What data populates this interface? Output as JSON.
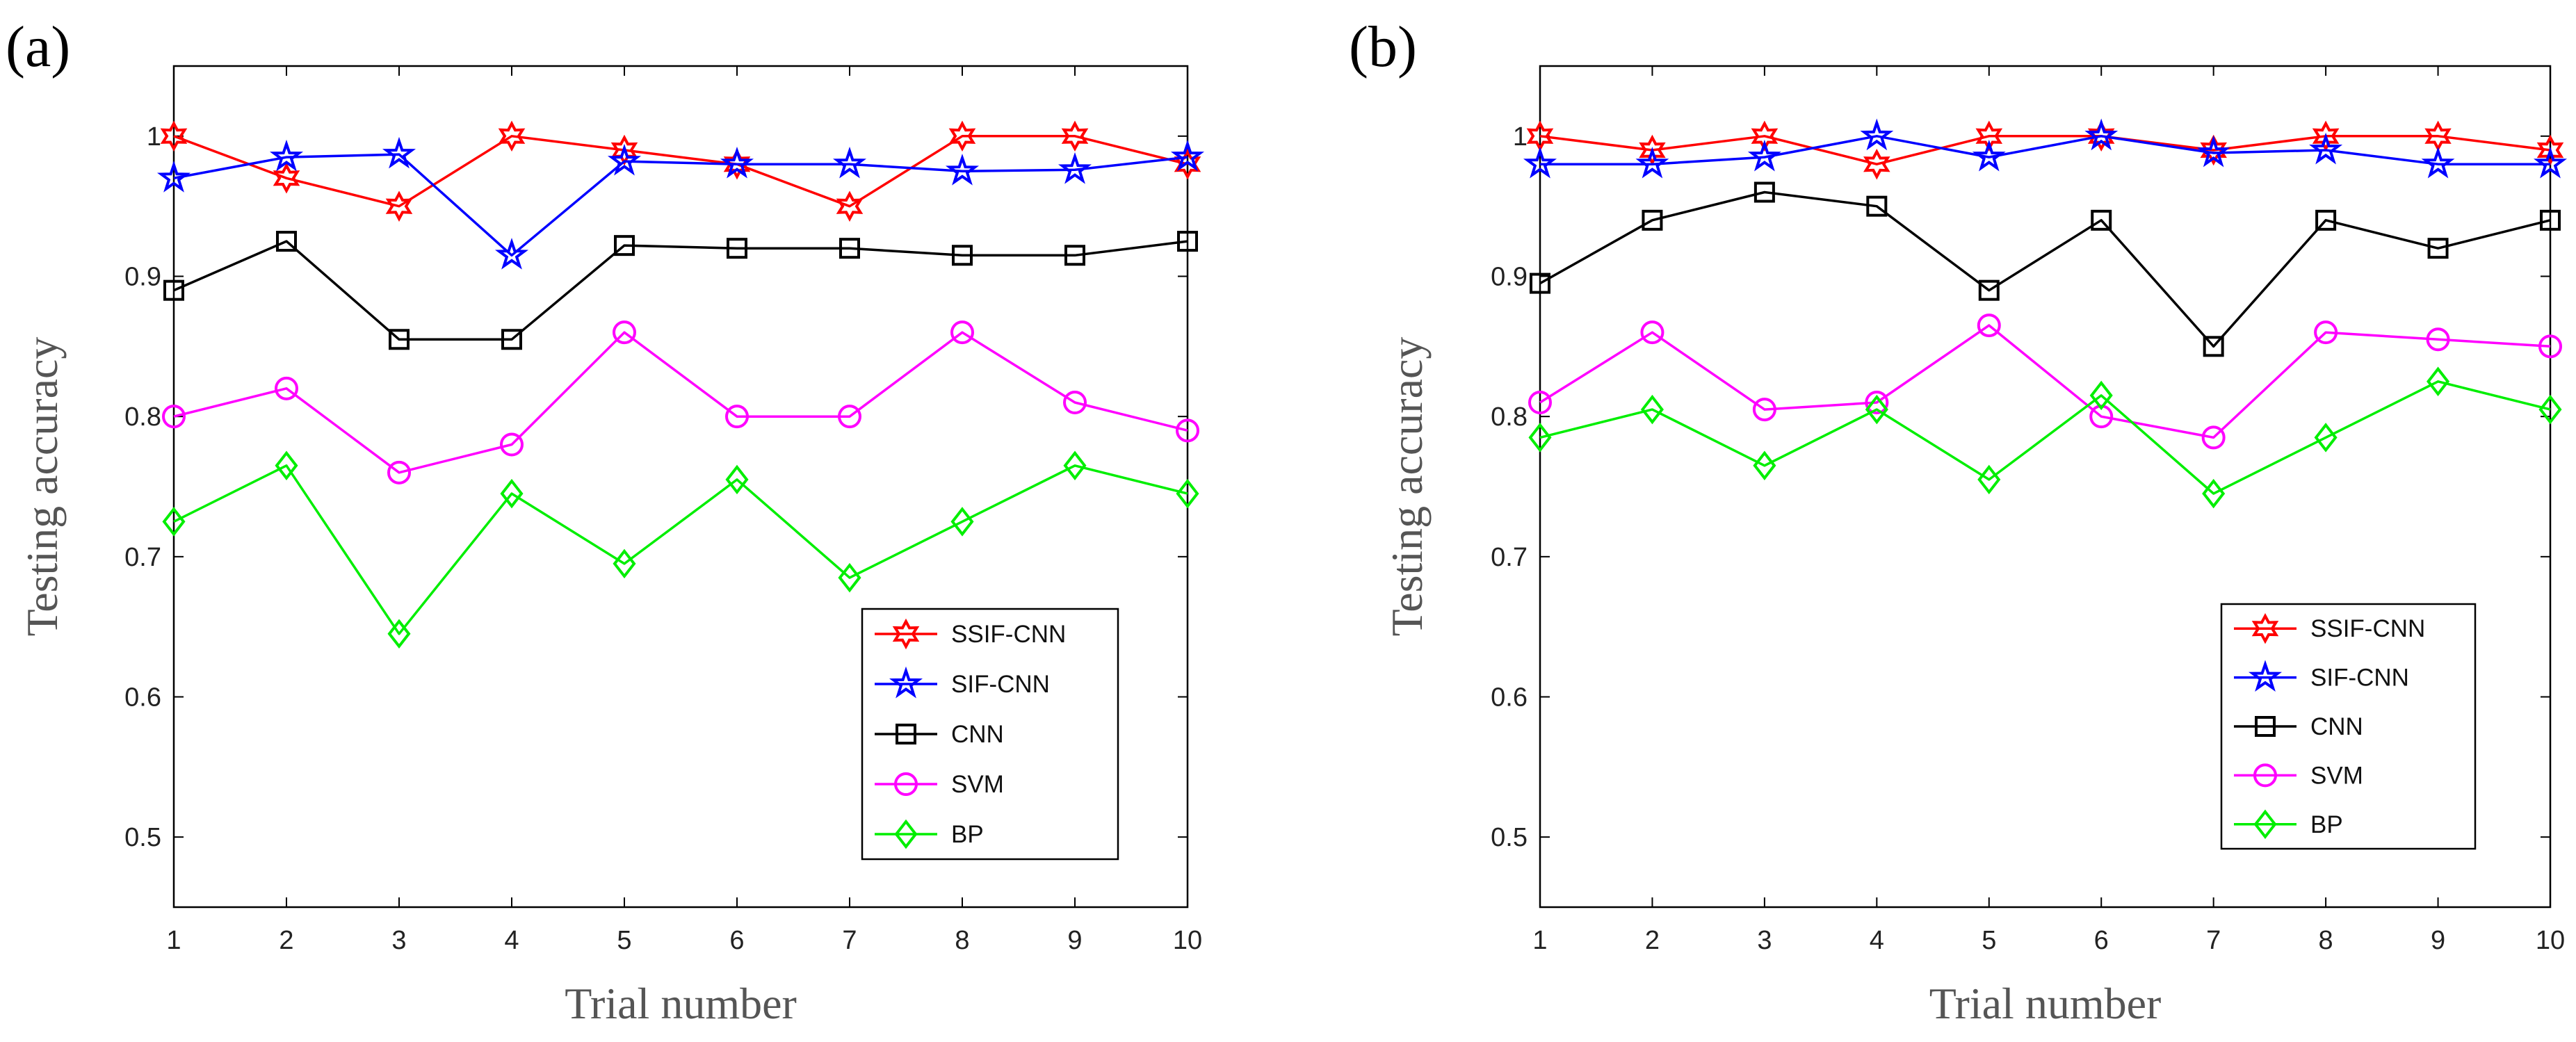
{
  "chart_data": [
    {
      "type": "line",
      "panel_label": "(a)",
      "xlabel": "Trial number",
      "ylabel": "Testing accuracy",
      "xlim": [
        1,
        10
      ],
      "ylim": [
        0.45,
        1.05
      ],
      "x": [
        1,
        2,
        3,
        4,
        5,
        6,
        7,
        8,
        9,
        10
      ],
      "x_tick_labels": [
        "1",
        "2",
        "3",
        "4",
        "5",
        "6",
        "7",
        "8",
        "9",
        "10"
      ],
      "y_ticks": [
        0.5,
        0.6,
        0.7,
        0.8,
        0.9,
        1.0
      ],
      "y_tick_labels": [
        "0.5",
        "0.6",
        "0.7",
        "0.8",
        "0.9",
        "1"
      ],
      "grid": false,
      "legend_position": "bottom-right",
      "series": [
        {
          "name": "SSIF-CNN",
          "color": "#ff0000",
          "marker": "hexagram",
          "values": [
            1.0,
            0.97,
            0.95,
            1.0,
            0.99,
            0.98,
            0.95,
            1.0,
            1.0,
            0.98
          ]
        },
        {
          "name": "SIF-CNN",
          "color": "#0000ff",
          "marker": "star",
          "values": [
            0.97,
            0.985,
            0.987,
            0.915,
            0.982,
            0.98,
            0.98,
            0.975,
            0.976,
            0.985
          ]
        },
        {
          "name": "CNN",
          "color": "#000000",
          "marker": "square",
          "values": [
            0.89,
            0.925,
            0.855,
            0.855,
            0.922,
            0.92,
            0.92,
            0.915,
            0.915,
            0.925
          ]
        },
        {
          "name": "SVM",
          "color": "#ff00ff",
          "marker": "circle",
          "values": [
            0.8,
            0.82,
            0.76,
            0.78,
            0.86,
            0.8,
            0.8,
            0.86,
            0.81,
            0.79
          ]
        },
        {
          "name": "BP",
          "color": "#00ee00",
          "marker": "diamond",
          "values": [
            0.725,
            0.765,
            0.645,
            0.745,
            0.695,
            0.755,
            0.685,
            0.725,
            0.765,
            0.745
          ]
        }
      ]
    },
    {
      "type": "line",
      "panel_label": "(b)",
      "xlabel": "Trial number",
      "ylabel": "Testing accuracy",
      "xlim": [
        1,
        10
      ],
      "ylim": [
        0.45,
        1.05
      ],
      "x": [
        1,
        2,
        3,
        4,
        5,
        6,
        7,
        8,
        9,
        10
      ],
      "x_tick_labels": [
        "1",
        "2",
        "3",
        "4",
        "5",
        "6",
        "7",
        "8",
        "9",
        "10"
      ],
      "y_ticks": [
        0.5,
        0.6,
        0.7,
        0.8,
        0.9,
        1.0
      ],
      "y_tick_labels": [
        "0.5",
        "0.6",
        "0.7",
        "0.8",
        "0.9",
        "1"
      ],
      "grid": false,
      "legend_position": "bottom-right",
      "series": [
        {
          "name": "SSIF-CNN",
          "color": "#ff0000",
          "marker": "hexagram",
          "values": [
            1.0,
            0.99,
            1.0,
            0.98,
            1.0,
            1.0,
            0.99,
            1.0,
            1.0,
            0.99
          ]
        },
        {
          "name": "SIF-CNN",
          "color": "#0000ff",
          "marker": "star",
          "values": [
            0.98,
            0.98,
            0.985,
            1.0,
            0.985,
            1.0,
            0.988,
            0.99,
            0.98,
            0.98
          ]
        },
        {
          "name": "CNN",
          "color": "#000000",
          "marker": "square",
          "values": [
            0.895,
            0.94,
            0.96,
            0.95,
            0.89,
            0.94,
            0.85,
            0.94,
            0.92,
            0.94
          ]
        },
        {
          "name": "SVM",
          "color": "#ff00ff",
          "marker": "circle",
          "values": [
            0.81,
            0.86,
            0.805,
            0.81,
            0.865,
            0.8,
            0.785,
            0.86,
            0.855,
            0.85
          ]
        },
        {
          "name": "BP",
          "color": "#00ee00",
          "marker": "diamond",
          "values": [
            0.785,
            0.805,
            0.765,
            0.805,
            0.755,
            0.815,
            0.745,
            0.785,
            0.825,
            0.805
          ]
        }
      ]
    }
  ]
}
